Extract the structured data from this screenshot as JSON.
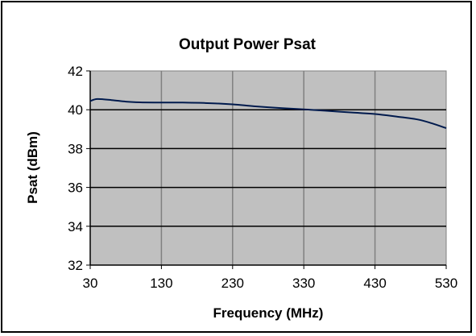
{
  "chart_data": {
    "type": "line",
    "title": "Output Power Psat",
    "xlabel": "Frequency (MHz)",
    "ylabel": "Psat  (dBm)",
    "xlim": [
      30,
      530
    ],
    "ylim": [
      32,
      42
    ],
    "x_ticks": [
      "30",
      "130",
      "230",
      "330",
      "430",
      "530"
    ],
    "y_ticks": [
      "32",
      "34",
      "36",
      "38",
      "40",
      "42"
    ],
    "grid": true,
    "legend": "none",
    "series": [
      {
        "x": [
          30,
          40,
          60,
          80,
          100,
          130,
          160,
          190,
          230,
          260,
          300,
          330,
          360,
          400,
          430,
          460,
          490,
          510,
          530
        ],
        "y": [
          40.45,
          40.55,
          40.5,
          40.42,
          40.38,
          40.37,
          40.37,
          40.35,
          40.28,
          40.18,
          40.08,
          40.02,
          39.95,
          39.85,
          39.78,
          39.65,
          39.5,
          39.3,
          39.05
        ]
      }
    ],
    "colors": {
      "plot_background": "#c0c0c0",
      "line": "#001a4d",
      "gridline": "#000000",
      "vertical_gridline": "#808080"
    }
  }
}
